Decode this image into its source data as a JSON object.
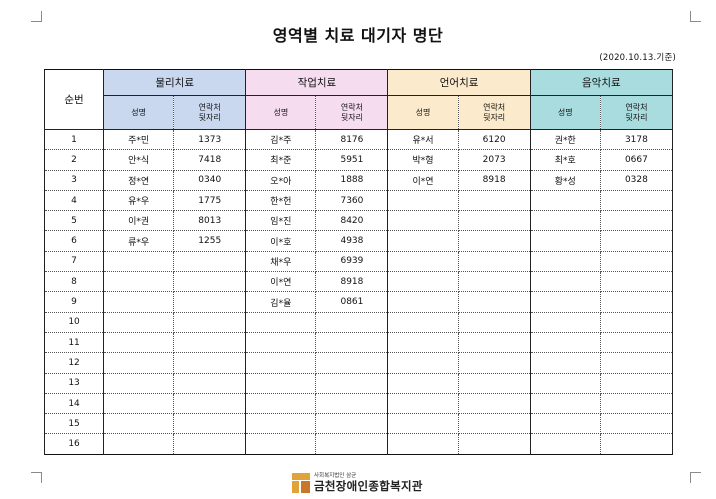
{
  "title": "영역별 치료 대기자 명단",
  "date": "(2020.10.13.기준)",
  "headers": {
    "seq": "순번",
    "groups": [
      "물리치료",
      "작업치료",
      "언어치료",
      "음악치료"
    ],
    "name": "성명",
    "contact_line1": "연락처",
    "contact_line2": "뒷자리"
  },
  "rows": [
    {
      "n": "1",
      "c": [
        [
          "주*민",
          "1373"
        ],
        [
          "김*주",
          "8176"
        ],
        [
          "유*서",
          "6120"
        ],
        [
          "권*한",
          "3178"
        ]
      ]
    },
    {
      "n": "2",
      "c": [
        [
          "안*식",
          "7418"
        ],
        [
          "최*준",
          "5951"
        ],
        [
          "박*형",
          "2073"
        ],
        [
          "최*호",
          "0667"
        ]
      ]
    },
    {
      "n": "3",
      "c": [
        [
          "정*연",
          "0340"
        ],
        [
          "오*아",
          "1888"
        ],
        [
          "이*연",
          "8918"
        ],
        [
          "황*성",
          "0328"
        ]
      ]
    },
    {
      "n": "4",
      "c": [
        [
          "유*우",
          "1775"
        ],
        [
          "한*헌",
          "7360"
        ],
        [
          "",
          ""
        ],
        [
          "",
          ""
        ]
      ]
    },
    {
      "n": "5",
      "c": [
        [
          "이*권",
          "8013"
        ],
        [
          "임*진",
          "8420"
        ],
        [
          "",
          ""
        ],
        [
          "",
          ""
        ]
      ]
    },
    {
      "n": "6",
      "c": [
        [
          "류*우",
          "1255"
        ],
        [
          "이*호",
          "4938"
        ],
        [
          "",
          ""
        ],
        [
          "",
          ""
        ]
      ]
    },
    {
      "n": "7",
      "c": [
        [
          "",
          ""
        ],
        [
          "채*우",
          "6939"
        ],
        [
          "",
          ""
        ],
        [
          "",
          ""
        ]
      ]
    },
    {
      "n": "8",
      "c": [
        [
          "",
          ""
        ],
        [
          "이*연",
          "8918"
        ],
        [
          "",
          ""
        ],
        [
          "",
          ""
        ]
      ]
    },
    {
      "n": "9",
      "c": [
        [
          "",
          ""
        ],
        [
          "김*율",
          "0861"
        ],
        [
          "",
          ""
        ],
        [
          "",
          ""
        ]
      ]
    },
    {
      "n": "10",
      "c": [
        [
          "",
          ""
        ],
        [
          "",
          ""
        ],
        [
          "",
          ""
        ],
        [
          "",
          ""
        ]
      ]
    },
    {
      "n": "11",
      "c": [
        [
          "",
          ""
        ],
        [
          "",
          ""
        ],
        [
          "",
          ""
        ],
        [
          "",
          ""
        ]
      ]
    },
    {
      "n": "12",
      "c": [
        [
          "",
          ""
        ],
        [
          "",
          ""
        ],
        [
          "",
          ""
        ],
        [
          "",
          ""
        ]
      ]
    },
    {
      "n": "13",
      "c": [
        [
          "",
          ""
        ],
        [
          "",
          ""
        ],
        [
          "",
          ""
        ],
        [
          "",
          ""
        ]
      ]
    },
    {
      "n": "14",
      "c": [
        [
          "",
          ""
        ],
        [
          "",
          ""
        ],
        [
          "",
          ""
        ],
        [
          "",
          ""
        ]
      ]
    },
    {
      "n": "15",
      "c": [
        [
          "",
          ""
        ],
        [
          "",
          ""
        ],
        [
          "",
          ""
        ],
        [
          "",
          ""
        ]
      ]
    },
    {
      "n": "16",
      "c": [
        [
          "",
          ""
        ],
        [
          "",
          ""
        ],
        [
          "",
          ""
        ],
        [
          "",
          ""
        ]
      ]
    }
  ],
  "footer": {
    "org_sub": "사회복지법인 삼균",
    "org_name": "금천장애인종합복지관",
    "logo_icon": "samgyun-logo-icon",
    "logo_color": "#e2a23a"
  },
  "colors": {
    "physical": "#c9d8ef",
    "occupational": "#f5dcef",
    "speech": "#fbeacb",
    "music": "#a9dcdf"
  }
}
